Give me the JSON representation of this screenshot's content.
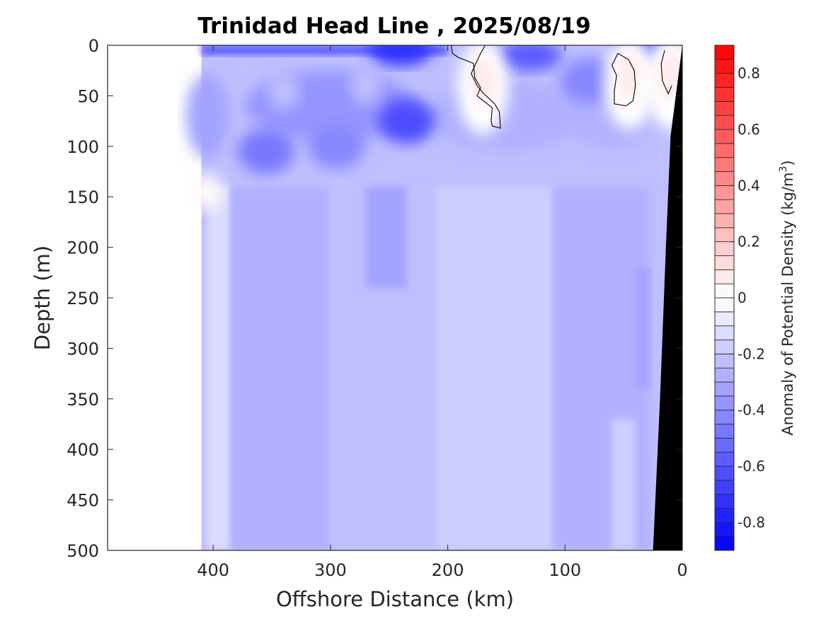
{
  "chart_data": {
    "type": "heatmap",
    "subtype": "filled-contour-section",
    "title": "Trinidad Head Line , 2025/08/19",
    "xlabel": "Offshore Distance (km)",
    "ylabel": "Depth (m)",
    "xlim": [
      490,
      0
    ],
    "ylim": [
      0,
      500
    ],
    "x_reversed": true,
    "y_reversed": true,
    "xticks": [
      400,
      300,
      200,
      100,
      0
    ],
    "xtick_labels": [
      "400",
      "300",
      "200",
      "100",
      "0"
    ],
    "yticks": [
      0,
      50,
      100,
      150,
      200,
      250,
      300,
      350,
      400,
      450,
      500
    ],
    "ytick_labels": [
      "0",
      "50",
      "100",
      "150",
      "200",
      "250",
      "300",
      "350",
      "400",
      "450",
      "500"
    ],
    "data_extent_km": [
      410,
      0
    ],
    "zero_contour_drawn": true,
    "colorbar": {
      "label": "Anomaly of Potential Density (kg/m",
      "label_superscript": "3",
      "label_close": ")",
      "clim": [
        -0.9,
        0.9
      ],
      "step": 0.05,
      "ticks": [
        0.8,
        0.6,
        0.4,
        0.2,
        0,
        -0.2,
        -0.4,
        -0.6,
        -0.8
      ],
      "tick_labels": [
        "0.8",
        "0.6",
        "0.4",
        "0.2",
        "0",
        "-0.2",
        "-0.4",
        "-0.6",
        "-0.8"
      ],
      "colormap": "blue-white-red",
      "neg_color": "#0000ff",
      "zero_color": "#ffffff",
      "pos_color": "#ff0000",
      "placement": "right"
    },
    "bathymetry": {
      "color": "#000000",
      "profile_km_at_depth": [
        [
          0,
          0
        ],
        [
          10,
          90
        ],
        [
          14,
          200
        ],
        [
          19,
          350
        ],
        [
          25,
          500
        ]
      ]
    },
    "features": [
      {
        "name": "surface-minimum",
        "x_km": 240,
        "depth_m": 5,
        "value": -0.75
      },
      {
        "name": "surface-minimum",
        "x_km": 130,
        "depth_m": 10,
        "value": -0.6
      },
      {
        "name": "surface-minimum",
        "x_km": 30,
        "depth_m": 0,
        "value": -0.65
      },
      {
        "name": "subsurface-minimum",
        "x_km": 235,
        "depth_m": 75,
        "value": -0.65
      },
      {
        "name": "subsurface-minimum",
        "x_km": 355,
        "depth_m": 105,
        "value": -0.5
      },
      {
        "name": "subsurface-minimum",
        "x_km": 295,
        "depth_m": 100,
        "value": -0.45
      },
      {
        "name": "subsurface-minimum",
        "x_km": 80,
        "depth_m": 35,
        "value": -0.45
      },
      {
        "name": "positive-anomaly",
        "x_km": 170,
        "depth_m": 35,
        "value": 0.05
      },
      {
        "name": "positive-anomaly",
        "x_km": 45,
        "depth_m": 30,
        "value": 0.05
      },
      {
        "name": "positive-anomaly",
        "x_km": 10,
        "depth_m": 30,
        "value": 0.05
      },
      {
        "name": "weak-anomaly",
        "x_km": 405,
        "depth_m": 145,
        "value": 0.0
      },
      {
        "name": "weak-anomaly",
        "x_km": 340,
        "depth_m": 45,
        "value": -0.2
      },
      {
        "name": "weak-anomaly",
        "x_km": 270,
        "depth_m": 40,
        "value": -0.2
      },
      {
        "name": "background-deep",
        "x_km": 200,
        "depth_m": 400,
        "value": -0.2
      }
    ]
  }
}
